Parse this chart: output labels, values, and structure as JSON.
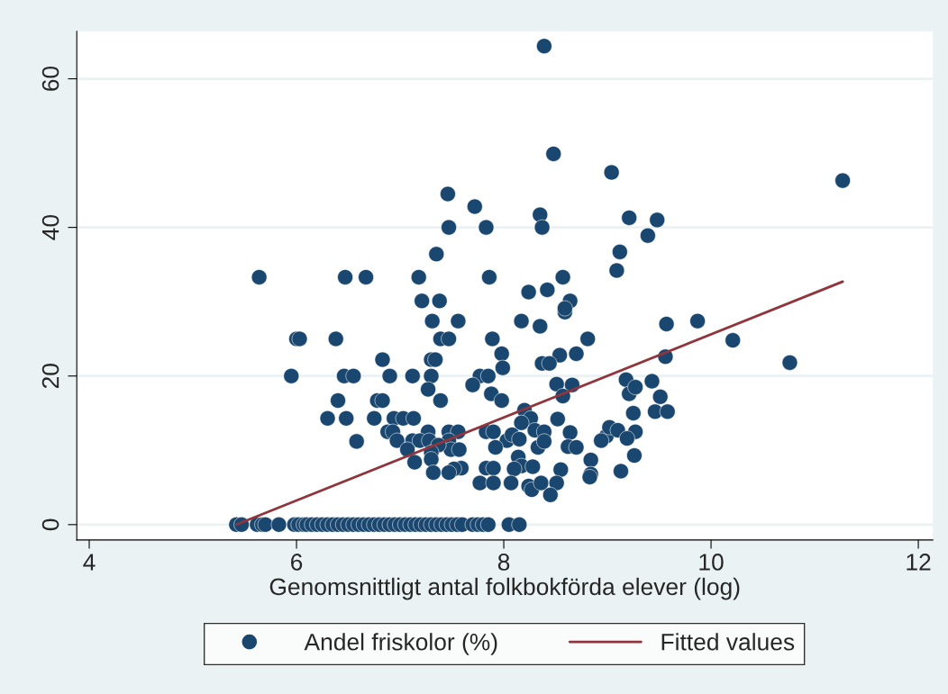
{
  "chart_data": {
    "type": "scatter",
    "xlabel": "Genomsnittligt antal folkbokförda elever (log)",
    "xlim": [
      3.88,
      12.14
    ],
    "xticks": [
      4,
      6,
      8,
      10,
      12
    ],
    "ylim": [
      -2.06,
      66.4
    ],
    "yticks": [
      0,
      20,
      40,
      60
    ],
    "grid": "y",
    "legend": "bottom",
    "series": [
      {
        "name": "Andel friskolor (%)",
        "marker": "circle",
        "color": "#1a476f",
        "x": [
          5.42,
          5.47,
          5.62,
          5.67,
          5.7,
          5.83,
          5.98,
          6.02,
          6.07,
          6.1,
          6.15,
          6.2,
          6.25,
          6.3,
          6.35,
          6.4,
          6.45,
          6.5,
          6.55,
          6.6,
          6.65,
          6.7,
          6.75,
          6.8,
          6.85,
          6.9,
          6.95,
          7.0,
          7.05,
          7.1,
          7.15,
          7.2,
          7.25,
          7.3,
          7.35,
          7.4,
          7.45,
          7.5,
          7.55,
          7.6,
          7.7,
          7.75,
          7.8,
          7.85,
          8.05,
          8.15,
          8.39,
          8.48,
          9.04,
          11.27,
          7.46,
          7.72,
          8.35,
          9.21,
          9.48,
          7.47,
          7.83,
          8.37,
          9.39,
          9.12,
          7.35,
          9.09,
          5.64,
          6.47,
          6.67,
          7.18,
          7.86,
          8.57,
          8.24,
          8.42,
          7.21,
          7.38,
          8.64,
          8.59,
          8.59,
          7.31,
          7.56,
          8.17,
          9.87,
          9.57,
          8.35,
          6.0,
          6.03,
          6.38,
          7.39,
          7.47,
          7.89,
          8.81,
          10.21,
          7.98,
          8.7,
          8.54,
          6.83,
          7.3,
          7.34,
          8.37,
          8.44,
          9.56,
          10.76,
          7.99,
          5.95,
          6.46,
          6.55,
          6.9,
          7.12,
          7.3,
          7.77,
          7.85,
          9.18,
          9.43,
          7.88,
          8.51,
          8.66,
          7.7,
          9.21,
          9.51,
          6.4,
          6.78,
          6.83,
          7.39,
          7.98,
          8.57,
          7.27,
          9.27,
          9.46,
          9.58,
          9.25,
          8.2,
          6.3,
          6.48,
          6.75,
          6.94,
          7.03,
          7.13,
          8.52,
          8.26,
          8.17,
          6.88,
          6.93,
          7.27,
          7.47,
          7.56,
          7.83,
          7.9,
          8.3,
          8.39,
          8.64,
          8.99,
          9.02,
          9.1,
          9.27,
          7.47,
          7.12,
          7.19,
          6.97,
          6.58,
          7.49,
          7.28,
          7.37,
          8.03,
          8.08,
          8.15,
          7.92,
          8.33,
          8.39,
          8.62,
          8.7,
          8.94,
          9.19,
          7.07,
          7.57,
          7.3,
          7.3,
          7.14,
          8.14,
          8.84,
          9.26,
          8.17,
          7.83,
          7.9,
          7.59,
          7.52,
          7.47,
          7.32,
          8.1,
          8.28,
          8.55,
          9.13,
          8.84,
          8.83,
          7.77,
          7.9,
          8.07,
          8.24,
          8.27,
          8.36,
          8.51,
          8.45
        ],
        "values": [
          0,
          0,
          0,
          0,
          0,
          0,
          0,
          0,
          0,
          0,
          0,
          0,
          0,
          0,
          0,
          0,
          0,
          0,
          0,
          0,
          0,
          0,
          0,
          0,
          0,
          0,
          0,
          0,
          0,
          0,
          0,
          0,
          0,
          0,
          0,
          0,
          0,
          0,
          0,
          0,
          0,
          0,
          0,
          0,
          0,
          0,
          64.4,
          49.9,
          47.4,
          46.3,
          44.5,
          42.8,
          41.7,
          41.3,
          41.0,
          40.0,
          40.0,
          40.0,
          38.9,
          36.7,
          36.4,
          34.2,
          33.3,
          33.3,
          33.3,
          33.3,
          33.3,
          33.3,
          31.3,
          31.6,
          30.1,
          30.1,
          30.1,
          28.6,
          29.1,
          27.4,
          27.4,
          27.4,
          27.4,
          27.0,
          26.7,
          25,
          25,
          25,
          25,
          25,
          25,
          25,
          24.8,
          23.0,
          23.0,
          22.8,
          22.2,
          22.2,
          22.2,
          21.7,
          21.7,
          22.6,
          21.8,
          21.1,
          20,
          20,
          20,
          20,
          20,
          20,
          20,
          20,
          19.5,
          19.3,
          17.6,
          18.9,
          18.8,
          18.8,
          17.6,
          17.2,
          16.7,
          16.7,
          16.7,
          16.7,
          16.7,
          17.3,
          18.2,
          18.5,
          15.2,
          15.2,
          15.0,
          15.4,
          14.3,
          14.3,
          14.3,
          14.3,
          14.3,
          14.3,
          14.2,
          14.3,
          13.7,
          12.5,
          12.5,
          12.5,
          12.5,
          12.5,
          12.5,
          12.5,
          12.7,
          12.5,
          12.4,
          11.9,
          13.1,
          12.7,
          12.5,
          11.3,
          11.3,
          11.3,
          11.3,
          11.2,
          10.1,
          11.3,
          10.7,
          11.3,
          12.1,
          11.5,
          10.4,
          10.4,
          11.2,
          10.5,
          10.4,
          11.3,
          11.6,
          10.1,
          10.1,
          9.7,
          8.8,
          8.4,
          9.1,
          8.7,
          9.3,
          7.9,
          7.6,
          7.6,
          7.6,
          7.5,
          7.0,
          7.0,
          7.5,
          7.8,
          7.4,
          7.2,
          6.8,
          6.4,
          5.6,
          5.6,
          5.6,
          5.2,
          4.7,
          5.6,
          5.6,
          4.0
        ]
      },
      {
        "name": "Fitted values",
        "type": "line",
        "color": "#90353b",
        "x": [
          5.42,
          11.27
        ],
        "values": [
          0,
          32.7
        ]
      }
    ]
  }
}
